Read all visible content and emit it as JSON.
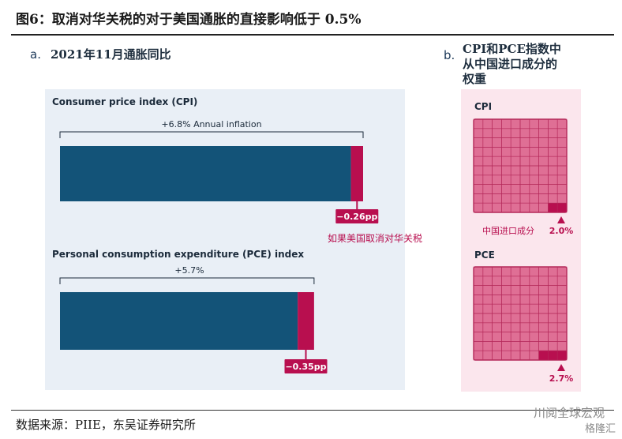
{
  "figure": {
    "title": "图6：取消对华关税的对于美国通胀的直接影响低于 0.5%",
    "source": "数据来源：PIIE，东吴证券研究所",
    "watermark_top": "川阅全球宏观",
    "watermark_bottom": "格隆汇"
  },
  "colors": {
    "bar_navy": "#135378",
    "bar_crimson": "#b80f4f",
    "panel_a_bg": "#e9eff6",
    "panel_b_bg": "#fbe6ed",
    "grid_fill": "#df6f95",
    "grid_line": "#b42a5a"
  },
  "chart_data": [
    {
      "type": "bar",
      "panel_letter": "a.",
      "title": "2021年11月通胀同比",
      "series": [
        {
          "name": "Consumer price index (CPI)",
          "total_label": "+6.8% Annual inflation",
          "total": 6.8,
          "tariff_effect": 0.26,
          "tariff_label": "−0.26pp",
          "note": "如果美国取消对华关税"
        },
        {
          "name": "Personal consumption expenditure (PCE) index",
          "total_label": "+5.7%",
          "total": 5.7,
          "tariff_effect": 0.35,
          "tariff_label": "−0.35pp"
        }
      ],
      "xlim": [
        0,
        6.8
      ]
    },
    {
      "type": "heatmap",
      "panel_letter": "b.",
      "title": "CPI和PCE指数中从中国进口成分的权重",
      "title_lines": [
        "CPI和PCE指数中",
        "从中国进口成分的",
        "权重"
      ],
      "grids": [
        {
          "name": "CPI",
          "share": 2.0,
          "share_label": "2.0%",
          "caption": "中国进口成分",
          "cells": 100
        },
        {
          "name": "PCE",
          "share": 2.7,
          "share_label": "2.7%",
          "caption": "",
          "cells": 100
        }
      ]
    }
  ]
}
